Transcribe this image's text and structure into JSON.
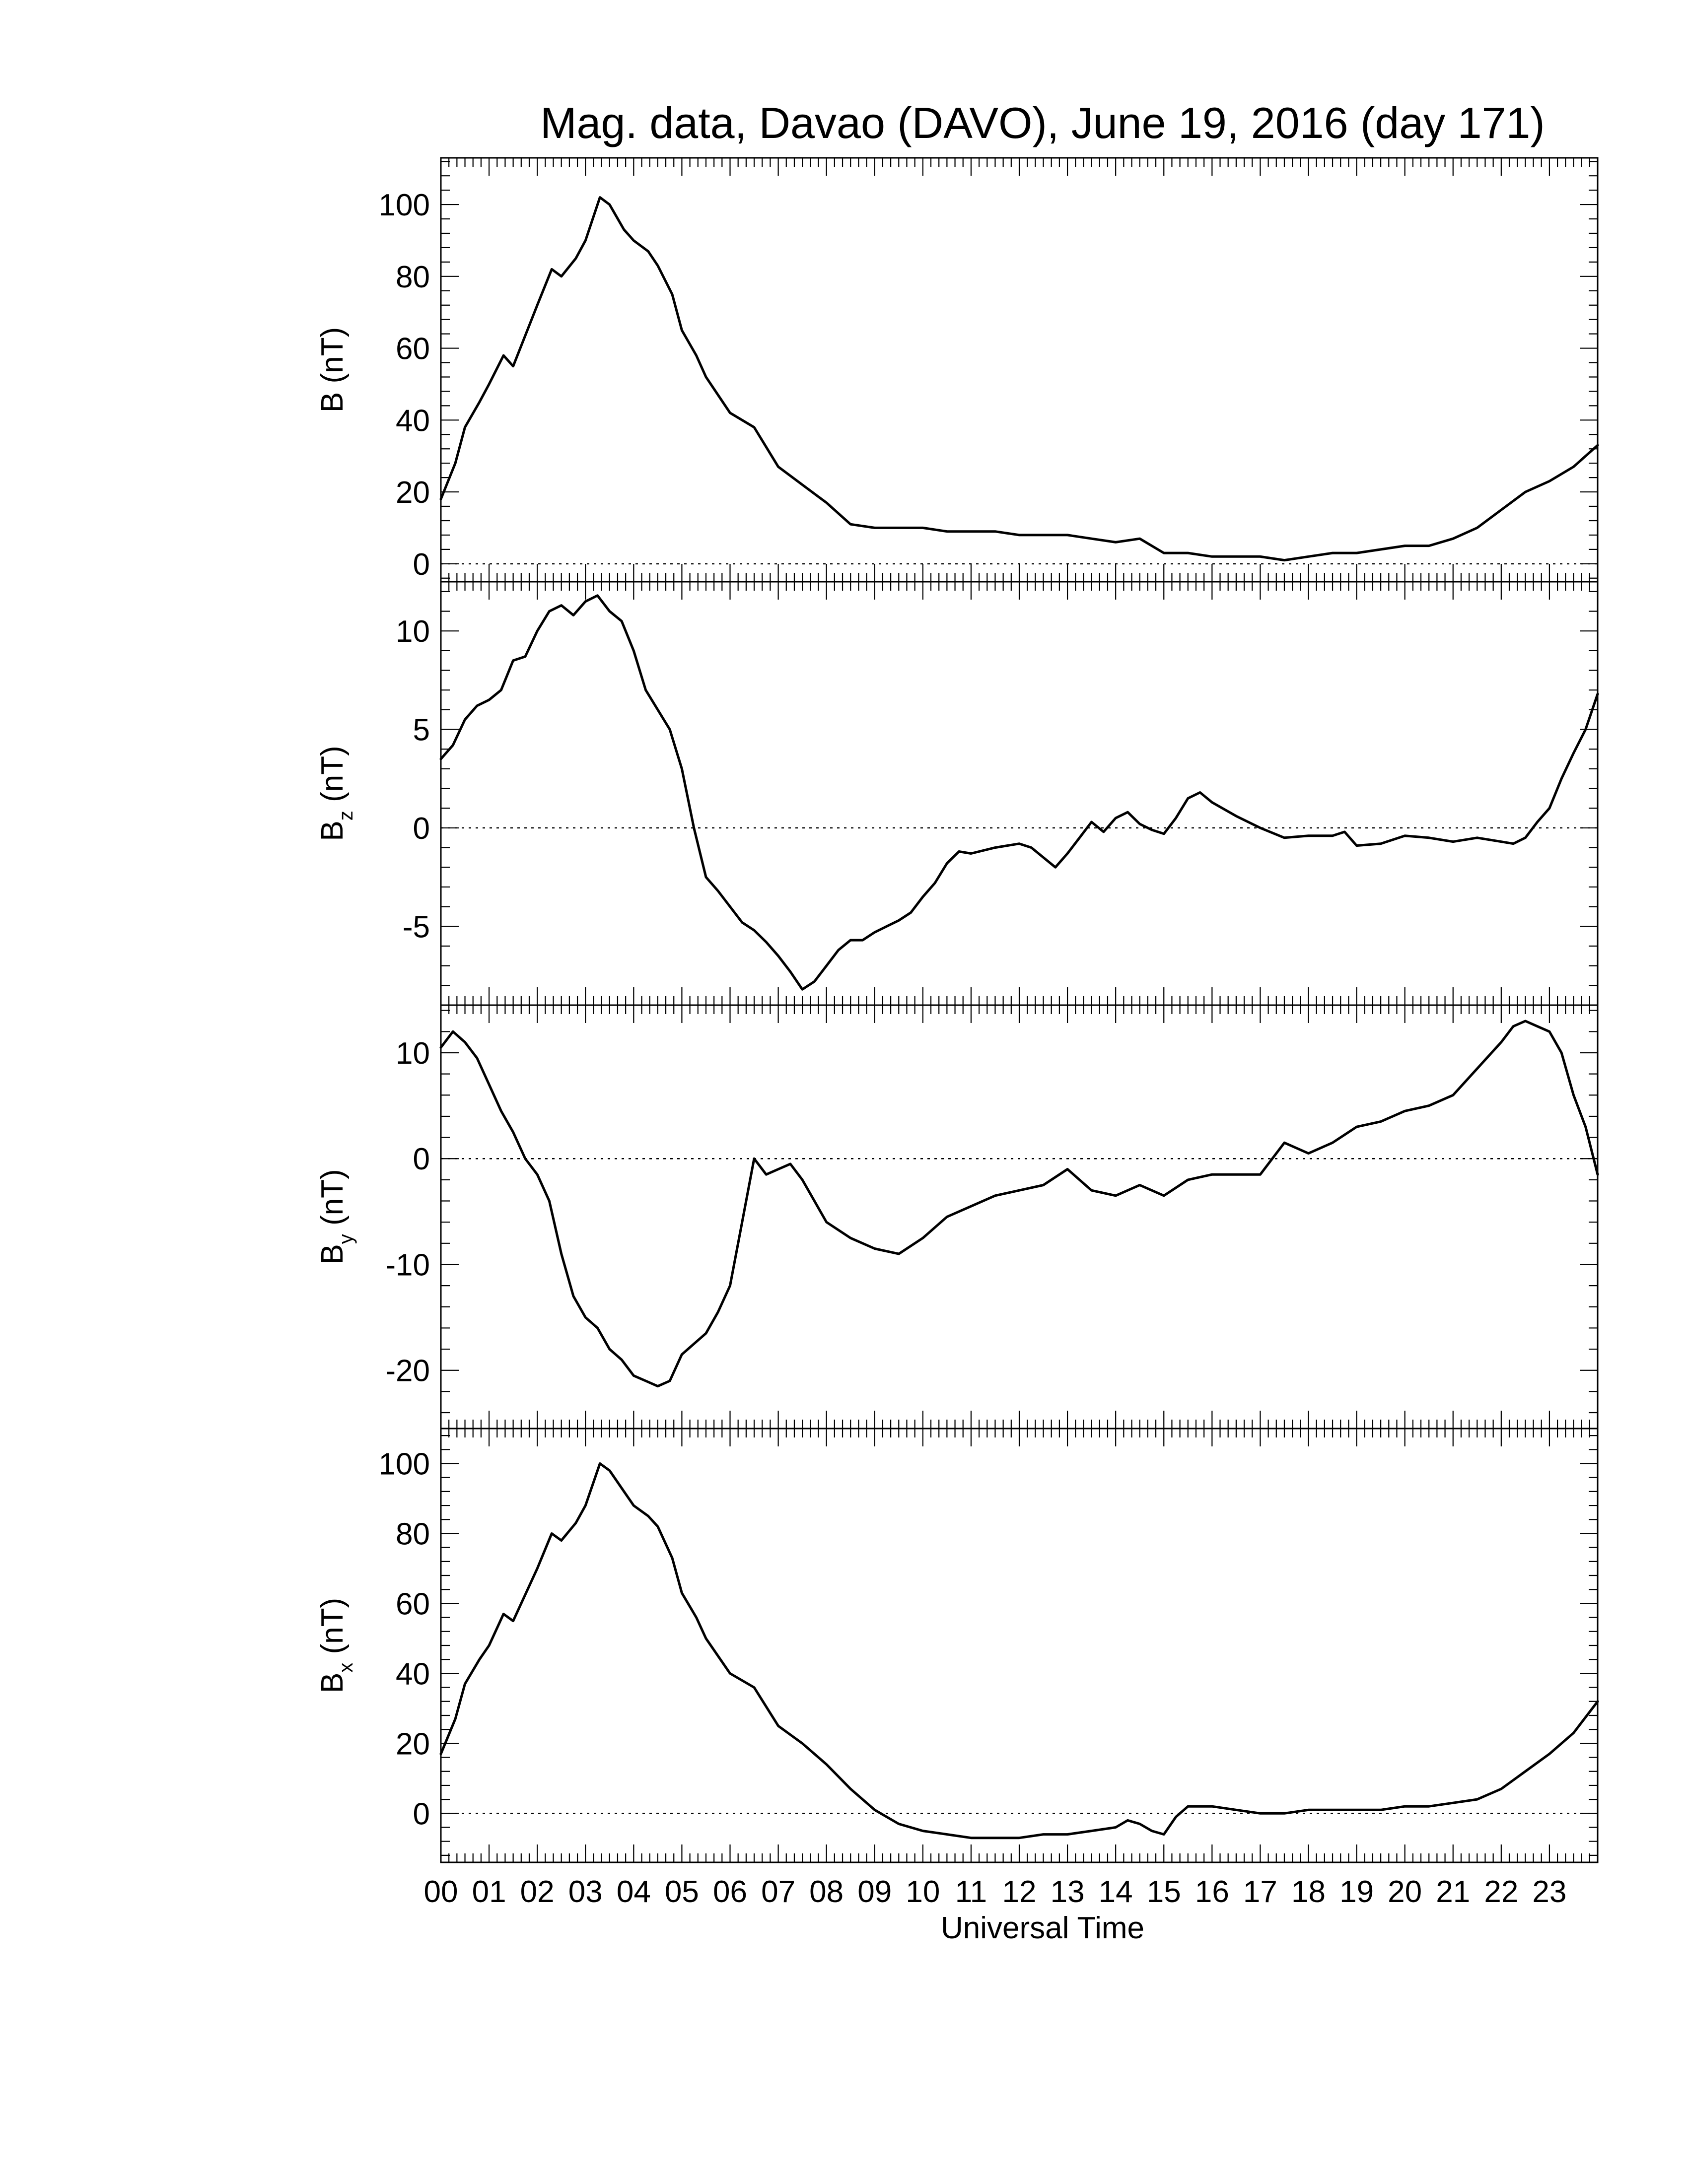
{
  "title": "Mag. data, Davao (DAVO), June 19, 2016 (day 171)",
  "x_axis": {
    "label": "Universal Time",
    "tick_labels": [
      "00",
      "01",
      "02",
      "03",
      "04",
      "05",
      "06",
      "07",
      "08",
      "09",
      "10",
      "11",
      "12",
      "13",
      "14",
      "15",
      "16",
      "17",
      "18",
      "19",
      "20",
      "21",
      "22",
      "23"
    ],
    "range_hours": [
      0,
      24
    ]
  },
  "chart_data": [
    {
      "type": "line",
      "label_main": "B",
      "label_sub": "",
      "label_unit": "(nT)",
      "ylim": [
        -5,
        113
      ],
      "yticks": [
        0,
        20,
        40,
        60,
        80,
        100
      ],
      "ytick_labels": [
        "0",
        "20",
        "40",
        "60",
        "80",
        "100"
      ],
      "zero_line": true,
      "series": [
        {
          "x": [
            0,
            0.3,
            0.5,
            0.8,
            1.0,
            1.3,
            1.5,
            2.0,
            2.3,
            2.5,
            2.8,
            3.0,
            3.3,
            3.5,
            3.8,
            4.0,
            4.3,
            4.5,
            4.8,
            5.0,
            5.3,
            5.5,
            6.0,
            6.5,
            7.0,
            7.5,
            8.0,
            8.5,
            9.0,
            9.5,
            10.0,
            10.5,
            11.0,
            11.5,
            12.0,
            12.5,
            13.0,
            13.5,
            14.0,
            14.5,
            15.0,
            15.5,
            16.0,
            16.5,
            17.0,
            17.5,
            18.0,
            18.5,
            19.0,
            19.5,
            20.0,
            20.5,
            21.0,
            21.5,
            22.0,
            22.5,
            23.0,
            23.5,
            24.0
          ],
          "y": [
            18,
            28,
            38,
            45,
            50,
            58,
            55,
            72,
            82,
            80,
            85,
            90,
            102,
            100,
            93,
            90,
            87,
            83,
            75,
            65,
            58,
            52,
            42,
            38,
            27,
            22,
            17,
            11,
            10,
            10,
            10,
            9,
            9,
            9,
            8,
            8,
            8,
            7,
            6,
            7,
            3,
            3,
            2,
            2,
            2,
            1,
            2,
            3,
            3,
            4,
            5,
            5,
            7,
            10,
            15,
            20,
            23,
            27,
            33
          ]
        }
      ]
    },
    {
      "type": "line",
      "label_main": "B",
      "label_sub": "z",
      "label_unit": "(nT)",
      "ylim": [
        -9,
        12.5
      ],
      "yticks": [
        -5,
        0,
        5,
        10
      ],
      "ytick_labels": [
        "-5",
        "0",
        "5",
        "10"
      ],
      "zero_line": true,
      "series": [
        {
          "x": [
            0,
            0.25,
            0.5,
            0.75,
            1.0,
            1.25,
            1.5,
            1.75,
            2.0,
            2.25,
            2.5,
            2.75,
            3.0,
            3.25,
            3.5,
            3.75,
            4.0,
            4.25,
            4.5,
            4.75,
            5.0,
            5.25,
            5.5,
            5.75,
            6.0,
            6.25,
            6.5,
            6.75,
            7.0,
            7.25,
            7.5,
            7.75,
            8.0,
            8.25,
            8.5,
            8.75,
            9.0,
            9.25,
            9.5,
            9.75,
            10.0,
            10.25,
            10.5,
            10.75,
            11.0,
            11.5,
            12.0,
            12.25,
            12.5,
            12.75,
            13.0,
            13.25,
            13.5,
            13.75,
            14.0,
            14.25,
            14.5,
            14.75,
            15.0,
            15.25,
            15.5,
            15.75,
            16.0,
            16.5,
            17.0,
            17.5,
            18.0,
            18.5,
            18.75,
            19.0,
            19.5,
            20.0,
            20.5,
            21.0,
            21.5,
            22.0,
            22.25,
            22.5,
            22.75,
            23.0,
            23.25,
            23.5,
            23.75,
            24.0
          ],
          "y": [
            3.5,
            4.2,
            5.5,
            6.2,
            6.5,
            7.0,
            8.5,
            8.7,
            10.0,
            11.0,
            11.3,
            10.8,
            11.5,
            11.8,
            11.0,
            10.5,
            9.0,
            7.0,
            6.0,
            5.0,
            3.0,
            0.0,
            -2.5,
            -3.2,
            -4.0,
            -4.8,
            -5.2,
            -5.8,
            -6.5,
            -7.3,
            -8.2,
            -7.8,
            -7.0,
            -6.2,
            -5.7,
            -5.7,
            -5.3,
            -5.0,
            -4.7,
            -4.3,
            -3.5,
            -2.8,
            -1.8,
            -1.2,
            -1.3,
            -1.0,
            -0.8,
            -1.0,
            -1.5,
            -2.0,
            -1.3,
            -0.5,
            0.3,
            -0.2,
            0.5,
            0.8,
            0.2,
            -0.1,
            -0.3,
            0.5,
            1.5,
            1.8,
            1.3,
            0.6,
            0.0,
            -0.5,
            -0.4,
            -0.4,
            -0.2,
            -0.9,
            -0.8,
            -0.4,
            -0.5,
            -0.7,
            -0.5,
            -0.7,
            -0.8,
            -0.5,
            0.3,
            1.0,
            2.5,
            3.8,
            5.0,
            6.8
          ]
        }
      ]
    },
    {
      "type": "line",
      "label_main": "B",
      "label_sub": "y",
      "label_unit": "(nT)",
      "ylim": [
        -25.5,
        14.5
      ],
      "yticks": [
        -20,
        -10,
        0,
        10
      ],
      "ytick_labels": [
        "-20",
        "-10",
        "0",
        "10"
      ],
      "zero_line": true,
      "series": [
        {
          "x": [
            0,
            0.25,
            0.5,
            0.75,
            1.0,
            1.25,
            1.5,
            1.75,
            2.0,
            2.25,
            2.5,
            2.75,
            3.0,
            3.25,
            3.5,
            3.75,
            4.0,
            4.25,
            4.5,
            4.75,
            5.0,
            5.25,
            5.5,
            5.75,
            6.0,
            6.25,
            6.5,
            6.75,
            7.0,
            7.25,
            7.5,
            7.75,
            8.0,
            8.5,
            9.0,
            9.5,
            10.0,
            10.5,
            11.0,
            11.5,
            12.0,
            12.5,
            13.0,
            13.5,
            14.0,
            14.5,
            15.0,
            15.5,
            16.0,
            16.5,
            17.0,
            17.5,
            18.0,
            18.5,
            19.0,
            19.5,
            20.0,
            20.5,
            21.0,
            21.5,
            22.0,
            22.25,
            22.5,
            22.75,
            23.0,
            23.25,
            23.5,
            23.75,
            24.0
          ],
          "y": [
            10.5,
            12.0,
            11.0,
            9.5,
            7.0,
            4.5,
            2.5,
            0.0,
            -1.5,
            -4.0,
            -9.0,
            -13.0,
            -15.0,
            -16.0,
            -18.0,
            -19.0,
            -20.5,
            -21.0,
            -21.5,
            -21.0,
            -18.5,
            -17.5,
            -16.5,
            -14.5,
            -12.0,
            -6.0,
            0.0,
            -1.5,
            -1.0,
            -0.5,
            -2.0,
            -4.0,
            -6.0,
            -7.5,
            -8.5,
            -9.0,
            -7.5,
            -5.5,
            -4.5,
            -3.5,
            -3.0,
            -2.5,
            -1.0,
            -3.0,
            -3.5,
            -2.5,
            -3.5,
            -2.0,
            -1.5,
            -1.5,
            -1.5,
            1.5,
            0.5,
            1.5,
            3.0,
            3.5,
            4.5,
            5.0,
            6.0,
            8.5,
            11.0,
            12.5,
            13.0,
            12.5,
            12.0,
            10.0,
            6.0,
            3.0,
            -1.5
          ]
        }
      ]
    },
    {
      "type": "line",
      "label_main": "B",
      "label_sub": "x",
      "label_unit": "(nT)",
      "ylim": [
        -14,
        110
      ],
      "yticks": [
        0,
        20,
        40,
        60,
        80,
        100
      ],
      "ytick_labels": [
        "0",
        "20",
        "40",
        "60",
        "80",
        "100"
      ],
      "zero_line": true,
      "series": [
        {
          "x": [
            0,
            0.3,
            0.5,
            0.8,
            1.0,
            1.3,
            1.5,
            2.0,
            2.3,
            2.5,
            2.8,
            3.0,
            3.3,
            3.5,
            3.8,
            4.0,
            4.3,
            4.5,
            4.8,
            5.0,
            5.3,
            5.5,
            6.0,
            6.5,
            7.0,
            7.5,
            8.0,
            8.5,
            9.0,
            9.5,
            10.0,
            10.5,
            11.0,
            11.5,
            12.0,
            12.5,
            13.0,
            13.5,
            14.0,
            14.25,
            14.5,
            14.75,
            15.0,
            15.25,
            15.5,
            16.0,
            16.5,
            17.0,
            17.5,
            18.0,
            18.5,
            19.0,
            19.5,
            20.0,
            20.5,
            21.0,
            21.5,
            22.0,
            22.5,
            23.0,
            23.5,
            24.0
          ],
          "y": [
            17,
            27,
            37,
            44,
            48,
            57,
            55,
            70,
            80,
            78,
            83,
            88,
            100,
            98,
            92,
            88,
            85,
            82,
            73,
            63,
            56,
            50,
            40,
            36,
            25,
            20,
            14,
            7,
            1,
            -3,
            -5,
            -6,
            -7,
            -7,
            -7,
            -6,
            -6,
            -5,
            -4,
            -2,
            -3,
            -5,
            -6,
            -1,
            2,
            2,
            1,
            0,
            0,
            1,
            1,
            1,
            1,
            2,
            2,
            3,
            4,
            7,
            12,
            17,
            23,
            32
          ]
        }
      ]
    }
  ]
}
